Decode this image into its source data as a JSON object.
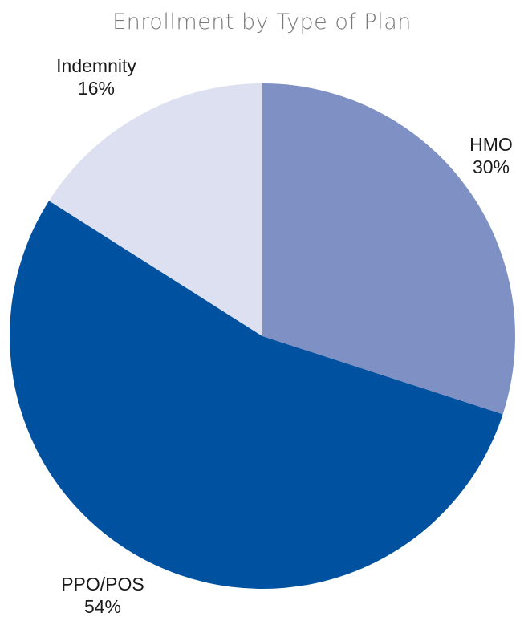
{
  "chart_data": {
    "type": "pie",
    "title": "Enrollment by Type of Plan",
    "start_angle_deg": 0,
    "direction": "clockwise",
    "slices": [
      {
        "label": "HMO",
        "value": 30,
        "value_label": "30%",
        "color": "#7f91c4"
      },
      {
        "label": "PPO/POS",
        "value": 54,
        "value_label": "54%",
        "color": "#0052a0"
      },
      {
        "label": "Indemnity",
        "value": 16,
        "value_label": "16%",
        "color": "#dde0f0"
      }
    ]
  }
}
